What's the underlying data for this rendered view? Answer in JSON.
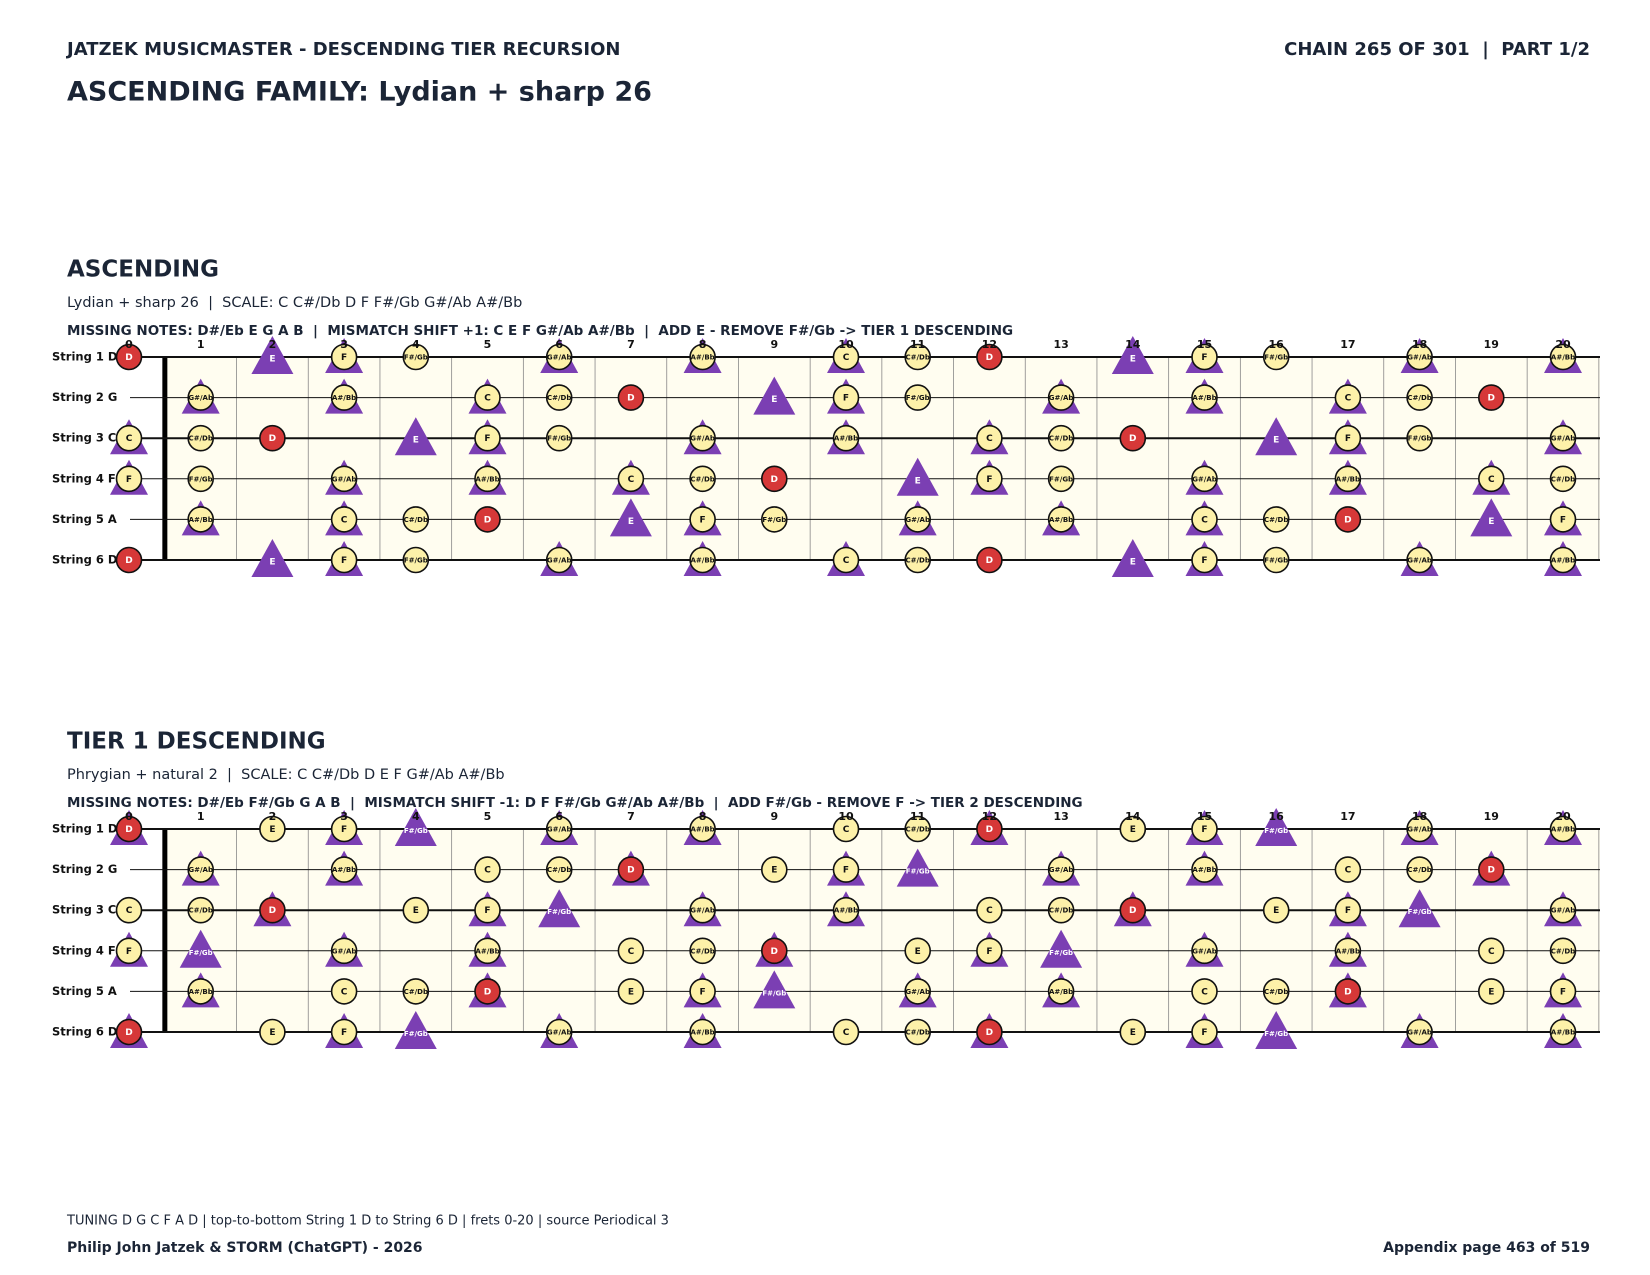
{
  "header": {
    "series_title": "JATZEK MUSICMASTER - DESCENDING TIER RECURSION",
    "chain": "CHAIN 265 OF 301  |  PART 1/2",
    "title": "ASCENDING FAMILY: Lydian + sharp 26"
  },
  "sections": [
    {
      "heading": "ASCENDING",
      "subtitle": "Lydian + sharp 26  |  SCALE: C C#/Db D F F#/Gb G#/Ab A#/Bb",
      "missing": "MISSING NOTES: D#/Eb E G A B  |  MISMATCH SHIFT +1: C E F G#/Ab A#/Bb  |  ADD E - REMOVE F#/Gb -> TIER 1 DESCENDING",
      "frets": [
        0,
        1,
        2,
        3,
        4,
        5,
        6,
        7,
        8,
        9,
        10,
        11,
        12,
        13,
        14,
        15,
        16,
        17,
        18,
        19,
        20
      ],
      "marks": {
        "C": "circle-triangle",
        "C#/Db": "circle",
        "D": "root",
        "E": "triangle",
        "F": "circle-triangle",
        "F#/Gb": "circle",
        "G#/Ab": "circle-triangle",
        "A#/Bb": "circle-triangle"
      },
      "strings": [
        {
          "label": "String 1 D",
          "notes": [
            "D",
            null,
            "E",
            "F",
            "F#/Gb",
            null,
            "G#/Ab",
            null,
            "A#/Bb",
            null,
            "C",
            "C#/Db",
            "D",
            null,
            "E",
            "F",
            "F#/Gb",
            null,
            "G#/Ab",
            null,
            "A#/Bb"
          ]
        },
        {
          "label": "String 2 G",
          "notes": [
            null,
            "G#/Ab",
            null,
            "A#/Bb",
            null,
            "C",
            "C#/Db",
            "D",
            null,
            "E",
            "F",
            "F#/Gb",
            null,
            "G#/Ab",
            null,
            "A#/Bb",
            null,
            "C",
            "C#/Db",
            "D",
            null
          ]
        },
        {
          "label": "String 3 C",
          "notes": [
            "C",
            "C#/Db",
            "D",
            null,
            "E",
            "F",
            "F#/Gb",
            null,
            "G#/Ab",
            null,
            "A#/Bb",
            null,
            "C",
            "C#/Db",
            "D",
            null,
            "E",
            "F",
            "F#/Gb",
            null,
            "G#/Ab"
          ]
        },
        {
          "label": "String 4 F",
          "notes": [
            "F",
            "F#/Gb",
            null,
            "G#/Ab",
            null,
            "A#/Bb",
            null,
            "C",
            "C#/Db",
            "D",
            null,
            "E",
            "F",
            "F#/Gb",
            null,
            "G#/Ab",
            null,
            "A#/Bb",
            null,
            "C",
            "C#/Db"
          ]
        },
        {
          "label": "String 5 A",
          "notes": [
            null,
            "A#/Bb",
            null,
            "C",
            "C#/Db",
            "D",
            null,
            "E",
            "F",
            "F#/Gb",
            null,
            "G#/Ab",
            null,
            "A#/Bb",
            null,
            "C",
            "C#/Db",
            "D",
            null,
            "E",
            "F"
          ]
        },
        {
          "label": "String 6 D",
          "notes": [
            "D",
            null,
            "E",
            "F",
            "F#/Gb",
            null,
            "G#/Ab",
            null,
            "A#/Bb",
            null,
            "C",
            "C#/Db",
            "D",
            null,
            "E",
            "F",
            "F#/Gb",
            null,
            "G#/Ab",
            null,
            "A#/Bb"
          ]
        }
      ]
    },
    {
      "heading": "TIER 1 DESCENDING",
      "subtitle": "Phrygian + natural 2  |  SCALE: C C#/Db D E F G#/Ab A#/Bb",
      "missing": "MISSING NOTES: D#/Eb F#/Gb G A B  |  MISMATCH SHIFT -1: D F F#/Gb G#/Ab A#/Bb  |  ADD F#/Gb - REMOVE F -> TIER 2 DESCENDING",
      "frets": [
        0,
        1,
        2,
        3,
        4,
        5,
        6,
        7,
        8,
        9,
        10,
        11,
        12,
        13,
        14,
        15,
        16,
        17,
        18,
        19,
        20
      ],
      "marks": {
        "C": "circle",
        "C#/Db": "circle",
        "D": "root-triangle",
        "E": "circle",
        "F": "circle-triangle",
        "F#/Gb": "triangle",
        "G#/Ab": "circle-triangle",
        "A#/Bb": "circle-triangle"
      },
      "strings": [
        {
          "label": "String 1 D",
          "notes": [
            "D",
            null,
            "E",
            "F",
            "F#/Gb",
            null,
            "G#/Ab",
            null,
            "A#/Bb",
            null,
            "C",
            "C#/Db",
            "D",
            null,
            "E",
            "F",
            "F#/Gb",
            null,
            "G#/Ab",
            null,
            "A#/Bb"
          ]
        },
        {
          "label": "String 2 G",
          "notes": [
            null,
            "G#/Ab",
            null,
            "A#/Bb",
            null,
            "C",
            "C#/Db",
            "D",
            null,
            "E",
            "F",
            "F#/Gb",
            null,
            "G#/Ab",
            null,
            "A#/Bb",
            null,
            "C",
            "C#/Db",
            "D",
            null
          ]
        },
        {
          "label": "String 3 C",
          "notes": [
            "C",
            "C#/Db",
            "D",
            null,
            "E",
            "F",
            "F#/Gb",
            null,
            "G#/Ab",
            null,
            "A#/Bb",
            null,
            "C",
            "C#/Db",
            "D",
            null,
            "E",
            "F",
            "F#/Gb",
            null,
            "G#/Ab"
          ]
        },
        {
          "label": "String 4 F",
          "notes": [
            "F",
            "F#/Gb",
            null,
            "G#/Ab",
            null,
            "A#/Bb",
            null,
            "C",
            "C#/Db",
            "D",
            null,
            "E",
            "F",
            "F#/Gb",
            null,
            "G#/Ab",
            null,
            "A#/Bb",
            null,
            "C",
            "C#/Db"
          ]
        },
        {
          "label": "String 5 A",
          "notes": [
            null,
            "A#/Bb",
            null,
            "C",
            "C#/Db",
            "D",
            null,
            "E",
            "F",
            "F#/Gb",
            null,
            "G#/Ab",
            null,
            "A#/Bb",
            null,
            "C",
            "C#/Db",
            "D",
            null,
            "E",
            "F"
          ]
        },
        {
          "label": "String 6 D",
          "notes": [
            "D",
            null,
            "E",
            "F",
            "F#/Gb",
            null,
            "G#/Ab",
            null,
            "A#/Bb",
            null,
            "C",
            "C#/Db",
            "D",
            null,
            "E",
            "F",
            "F#/Gb",
            null,
            "G#/Ab",
            null,
            "A#/Bb"
          ]
        }
      ]
    }
  ],
  "footer": {
    "note": "TUNING D G C F A D | top-to-bottom String 1 D to String 6 D | frets 0-20 | source Periodical 3",
    "authors": "Philip John Jatzek & STORM (ChatGPT) - 2026",
    "page": "Appendix page 463 of 519"
  }
}
